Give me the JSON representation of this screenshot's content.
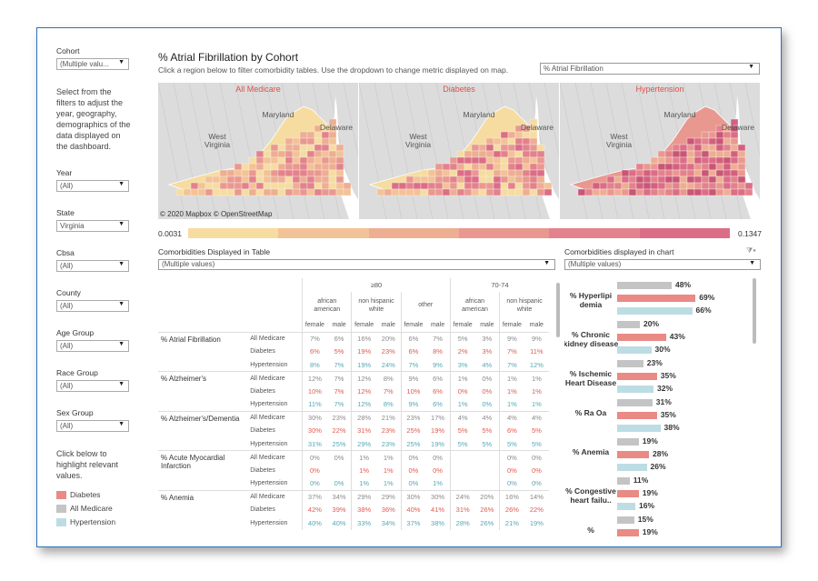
{
  "sidebar": {
    "cohort": {
      "label": "Cohort",
      "value": "(Multiple valu..."
    },
    "info_text": "Select from the filters to adjust the year, geography, demographics of the data displayed on the dashboard.",
    "year": {
      "label": "Year",
      "value": "(All)"
    },
    "state": {
      "label": "State",
      "value": "Virginia"
    },
    "cbsa": {
      "label": "Cbsa",
      "value": "(All)"
    },
    "county": {
      "label": "County",
      "value": "(All)"
    },
    "age_group": {
      "label": "Age Group",
      "value": "(All)"
    },
    "race_group": {
      "label": "Race Group",
      "value": "(All)"
    },
    "sex_group": {
      "label": "Sex Group",
      "value": "(All)"
    },
    "highlight_text": "Click below to highlight relevant values.",
    "legend": [
      {
        "label": "Diabetes",
        "color": "#e98a84"
      },
      {
        "label": "All Medicare",
        "color": "#c4c4c4"
      },
      {
        "label": "Hypertension",
        "color": "#bcdde3"
      }
    ]
  },
  "header": {
    "title_metric": "% Atrial Fibrillation",
    "title_by": " by ",
    "title_cohort": "Cohort",
    "subtitle": "Click a region below to filter comorbidity tables. Use the dropdown to change metric displayed on map.",
    "metric_select": "% Atrial Fibrillation"
  },
  "maps": {
    "titles": [
      "All Medicare",
      "Diabetes",
      "Hypertension"
    ],
    "place_labels": {
      "maryland": "Maryland",
      "west_virginia_1": "West",
      "west_virginia_2": "Virginia",
      "delaware": "Delaware"
    },
    "credit": "© 2020 Mapbox © OpenStreetMap"
  },
  "scale": {
    "min": "0.0031",
    "max": "0.1347",
    "colors": [
      "#f6dca0",
      "#f3c296",
      "#eeae92",
      "#e99890",
      "#e3828c",
      "#dc6d87"
    ]
  },
  "table": {
    "heading": "Comorbidities Displayed in Table",
    "select_value": "(Multiple values)",
    "age_groups": [
      "≥80",
      "70-74"
    ],
    "race_groups": [
      "african american",
      "non hispanic white",
      "other",
      "african american",
      "non hispanic white"
    ],
    "sexes": [
      "female",
      "male"
    ],
    "cohorts": [
      "All Medicare",
      "Diabetes",
      "Hypertension"
    ],
    "rows": [
      {
        "condition": "% Atrial Fibrillation",
        "values": [
          [
            "7%",
            "6%",
            "16%",
            "20%",
            "6%",
            "7%",
            "5%",
            "3%",
            "9%",
            "9%"
          ],
          [
            "6%",
            "5%",
            "19%",
            "23%",
            "6%",
            "8%",
            "2%",
            "3%",
            "7%",
            "11%"
          ],
          [
            "8%",
            "7%",
            "19%",
            "24%",
            "7%",
            "9%",
            "3%",
            "4%",
            "7%",
            "12%"
          ]
        ]
      },
      {
        "condition": "% Alzheimer's",
        "values": [
          [
            "12%",
            "7%",
            "12%",
            "8%",
            "9%",
            "6%",
            "1%",
            "0%",
            "1%",
            "1%"
          ],
          [
            "10%",
            "7%",
            "12%",
            "7%",
            "10%",
            "6%",
            "0%",
            "0%",
            "1%",
            "1%"
          ],
          [
            "11%",
            "7%",
            "12%",
            "8%",
            "9%",
            "6%",
            "1%",
            "0%",
            "1%",
            "1%"
          ]
        ]
      },
      {
        "condition": "% Alzheimer's/Dementia",
        "values": [
          [
            "30%",
            "23%",
            "28%",
            "21%",
            "23%",
            "17%",
            "4%",
            "4%",
            "4%",
            "4%"
          ],
          [
            "30%",
            "22%",
            "31%",
            "23%",
            "25%",
            "19%",
            "5%",
            "5%",
            "6%",
            "5%"
          ],
          [
            "31%",
            "25%",
            "29%",
            "23%",
            "25%",
            "19%",
            "5%",
            "5%",
            "5%",
            "5%"
          ]
        ]
      },
      {
        "condition": "% Acute Myocardial Infarction",
        "values": [
          [
            "0%",
            "0%",
            "1%",
            "1%",
            "0%",
            "0%",
            "",
            "",
            "0%",
            "0%"
          ],
          [
            "0%",
            "",
            "1%",
            "1%",
            "0%",
            "0%",
            "",
            "",
            "0%",
            "0%"
          ],
          [
            "0%",
            "0%",
            "1%",
            "1%",
            "0%",
            "1%",
            "",
            "",
            "0%",
            "0%"
          ]
        ]
      },
      {
        "condition": "% Anemia",
        "values": [
          [
            "37%",
            "34%",
            "29%",
            "29%",
            "30%",
            "30%",
            "24%",
            "20%",
            "16%",
            "14%"
          ],
          [
            "42%",
            "39%",
            "38%",
            "36%",
            "40%",
            "41%",
            "31%",
            "26%",
            "26%",
            "22%"
          ],
          [
            "40%",
            "40%",
            "33%",
            "34%",
            "37%",
            "38%",
            "28%",
            "26%",
            "21%",
            "19%"
          ]
        ]
      }
    ]
  },
  "chart": {
    "heading": "Comorbidities displayed in chart",
    "select_value": "(Multiple values)"
  },
  "chart_data": {
    "type": "bar",
    "orientation": "horizontal",
    "categories": [
      "% Hyperlipidemia",
      "% Chronic kidney disease",
      "% Ischemic Heart Disease",
      "% Ra Oa",
      "% Anemia",
      "% Congestive heart failu..",
      "%"
    ],
    "category_display": [
      "% Hyperlipi demia",
      "% Chronic kidney disease",
      "% Ischemic Heart Disease",
      "% Ra Oa",
      "% Anemia",
      "% Congestive heart failu..",
      "%"
    ],
    "series": [
      {
        "name": "All Medicare",
        "color": "#c4c4c4",
        "values": [
          48,
          20,
          23,
          31,
          19,
          11,
          15
        ]
      },
      {
        "name": "Diabetes",
        "color": "#e98a84",
        "values": [
          69,
          43,
          35,
          35,
          28,
          19,
          19
        ]
      },
      {
        "name": "Hypertension",
        "color": "#bcdde3",
        "values": [
          66,
          30,
          32,
          38,
          26,
          16,
          null
        ]
      }
    ],
    "value_suffix": "%"
  }
}
